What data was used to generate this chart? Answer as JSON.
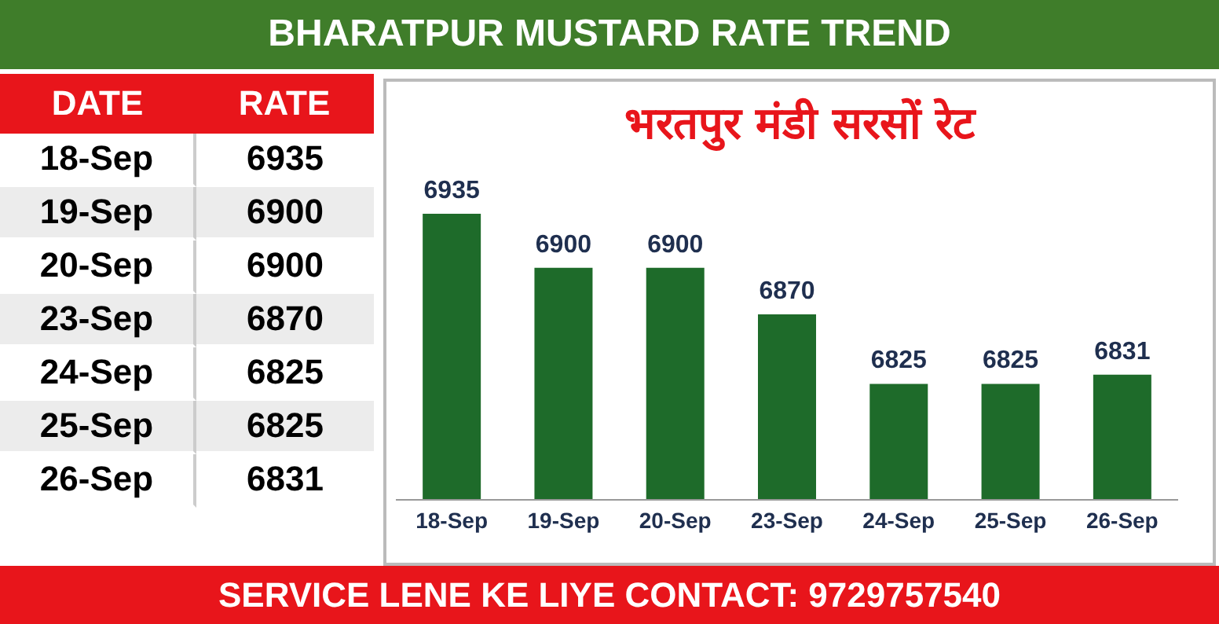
{
  "chart_data": [
    {
      "type": "other",
      "categories": [
        "18-Sep",
        "19-Sep",
        "20-Sep",
        "23-Sep",
        "24-Sep",
        "25-Sep",
        "26-Sep"
      ],
      "values": [
        6935,
        6900,
        6900,
        6870,
        6825,
        6825,
        6831
      ],
      "data_labels": true,
      "annotations": [
        "DATE",
        "RATE"
      ]
    },
    {
      "type": "bar",
      "title": "BHARATPUR MUSTARD RATE TREND",
      "subtitle": "भरतपुर मंडी सरसों रेट",
      "categories": [
        "18-Sep",
        "19-Sep",
        "20-Sep",
        "23-Sep",
        "24-Sep",
        "25-Sep",
        "26-Sep"
      ],
      "values": [
        6935,
        6900,
        6900,
        6870,
        6825,
        6825,
        6831
      ],
      "color": "#1e6b2a",
      "ylim": [
        6750,
        6935
      ],
      "tick_labels": "x",
      "data_labels": true,
      "annotations": [
        "SERVICE LENE KE LIYE CONTACT: 9729757540"
      ]
    }
  ]
}
